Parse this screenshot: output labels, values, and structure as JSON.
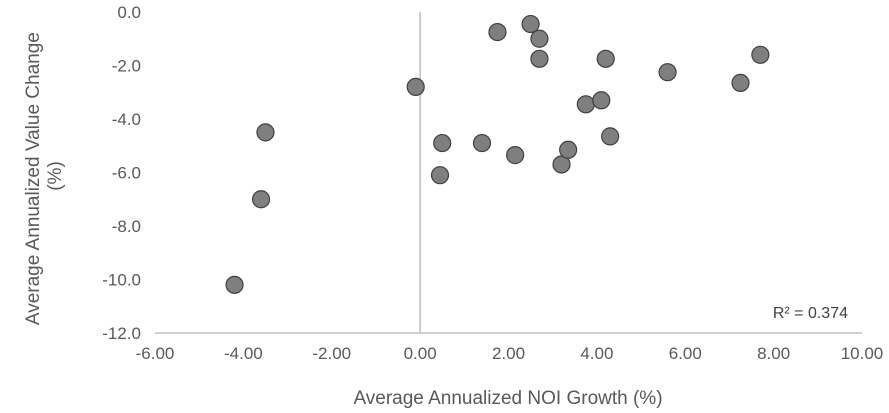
{
  "chart_data": {
    "type": "scatter",
    "xlabel": "Average Annualized NOI Growth (%)",
    "ylabel_lines": [
      "Average Annualized Value Change",
      "(%)"
    ],
    "xlim": [
      -6,
      10
    ],
    "ylim": [
      -12,
      0
    ],
    "x_ticks": [
      "-6.00",
      "-4.00",
      "-2.00",
      "0.00",
      "2.00",
      "4.00",
      "6.00",
      "8.00",
      "10.00"
    ],
    "y_ticks": [
      "0.0",
      "-2.0",
      "-4.0",
      "-6.0",
      "-8.0",
      "-10.0",
      "-12.0"
    ],
    "annotation": "R² = 0.374",
    "grid": false,
    "marker_color": "#7f7f7f",
    "marker_edge_color": "#404040",
    "points": [
      {
        "x": -4.2,
        "y": -10.2
      },
      {
        "x": -3.6,
        "y": -7.0
      },
      {
        "x": -3.5,
        "y": -4.5
      },
      {
        "x": -0.1,
        "y": -2.8
      },
      {
        "x": 0.45,
        "y": -6.1
      },
      {
        "x": 0.5,
        "y": -4.9
      },
      {
        "x": 1.4,
        "y": -4.9
      },
      {
        "x": 1.75,
        "y": -0.75
      },
      {
        "x": 2.15,
        "y": -5.35
      },
      {
        "x": 2.5,
        "y": -0.45
      },
      {
        "x": 2.7,
        "y": -1.0
      },
      {
        "x": 2.7,
        "y": -1.75
      },
      {
        "x": 3.2,
        "y": -5.7
      },
      {
        "x": 3.35,
        "y": -5.15
      },
      {
        "x": 3.75,
        "y": -3.45
      },
      {
        "x": 4.1,
        "y": -3.3
      },
      {
        "x": 4.2,
        "y": -1.75
      },
      {
        "x": 4.3,
        "y": -4.65
      },
      {
        "x": 5.6,
        "y": -2.25
      },
      {
        "x": 7.25,
        "y": -2.65
      },
      {
        "x": 7.7,
        "y": -1.6
      }
    ]
  }
}
